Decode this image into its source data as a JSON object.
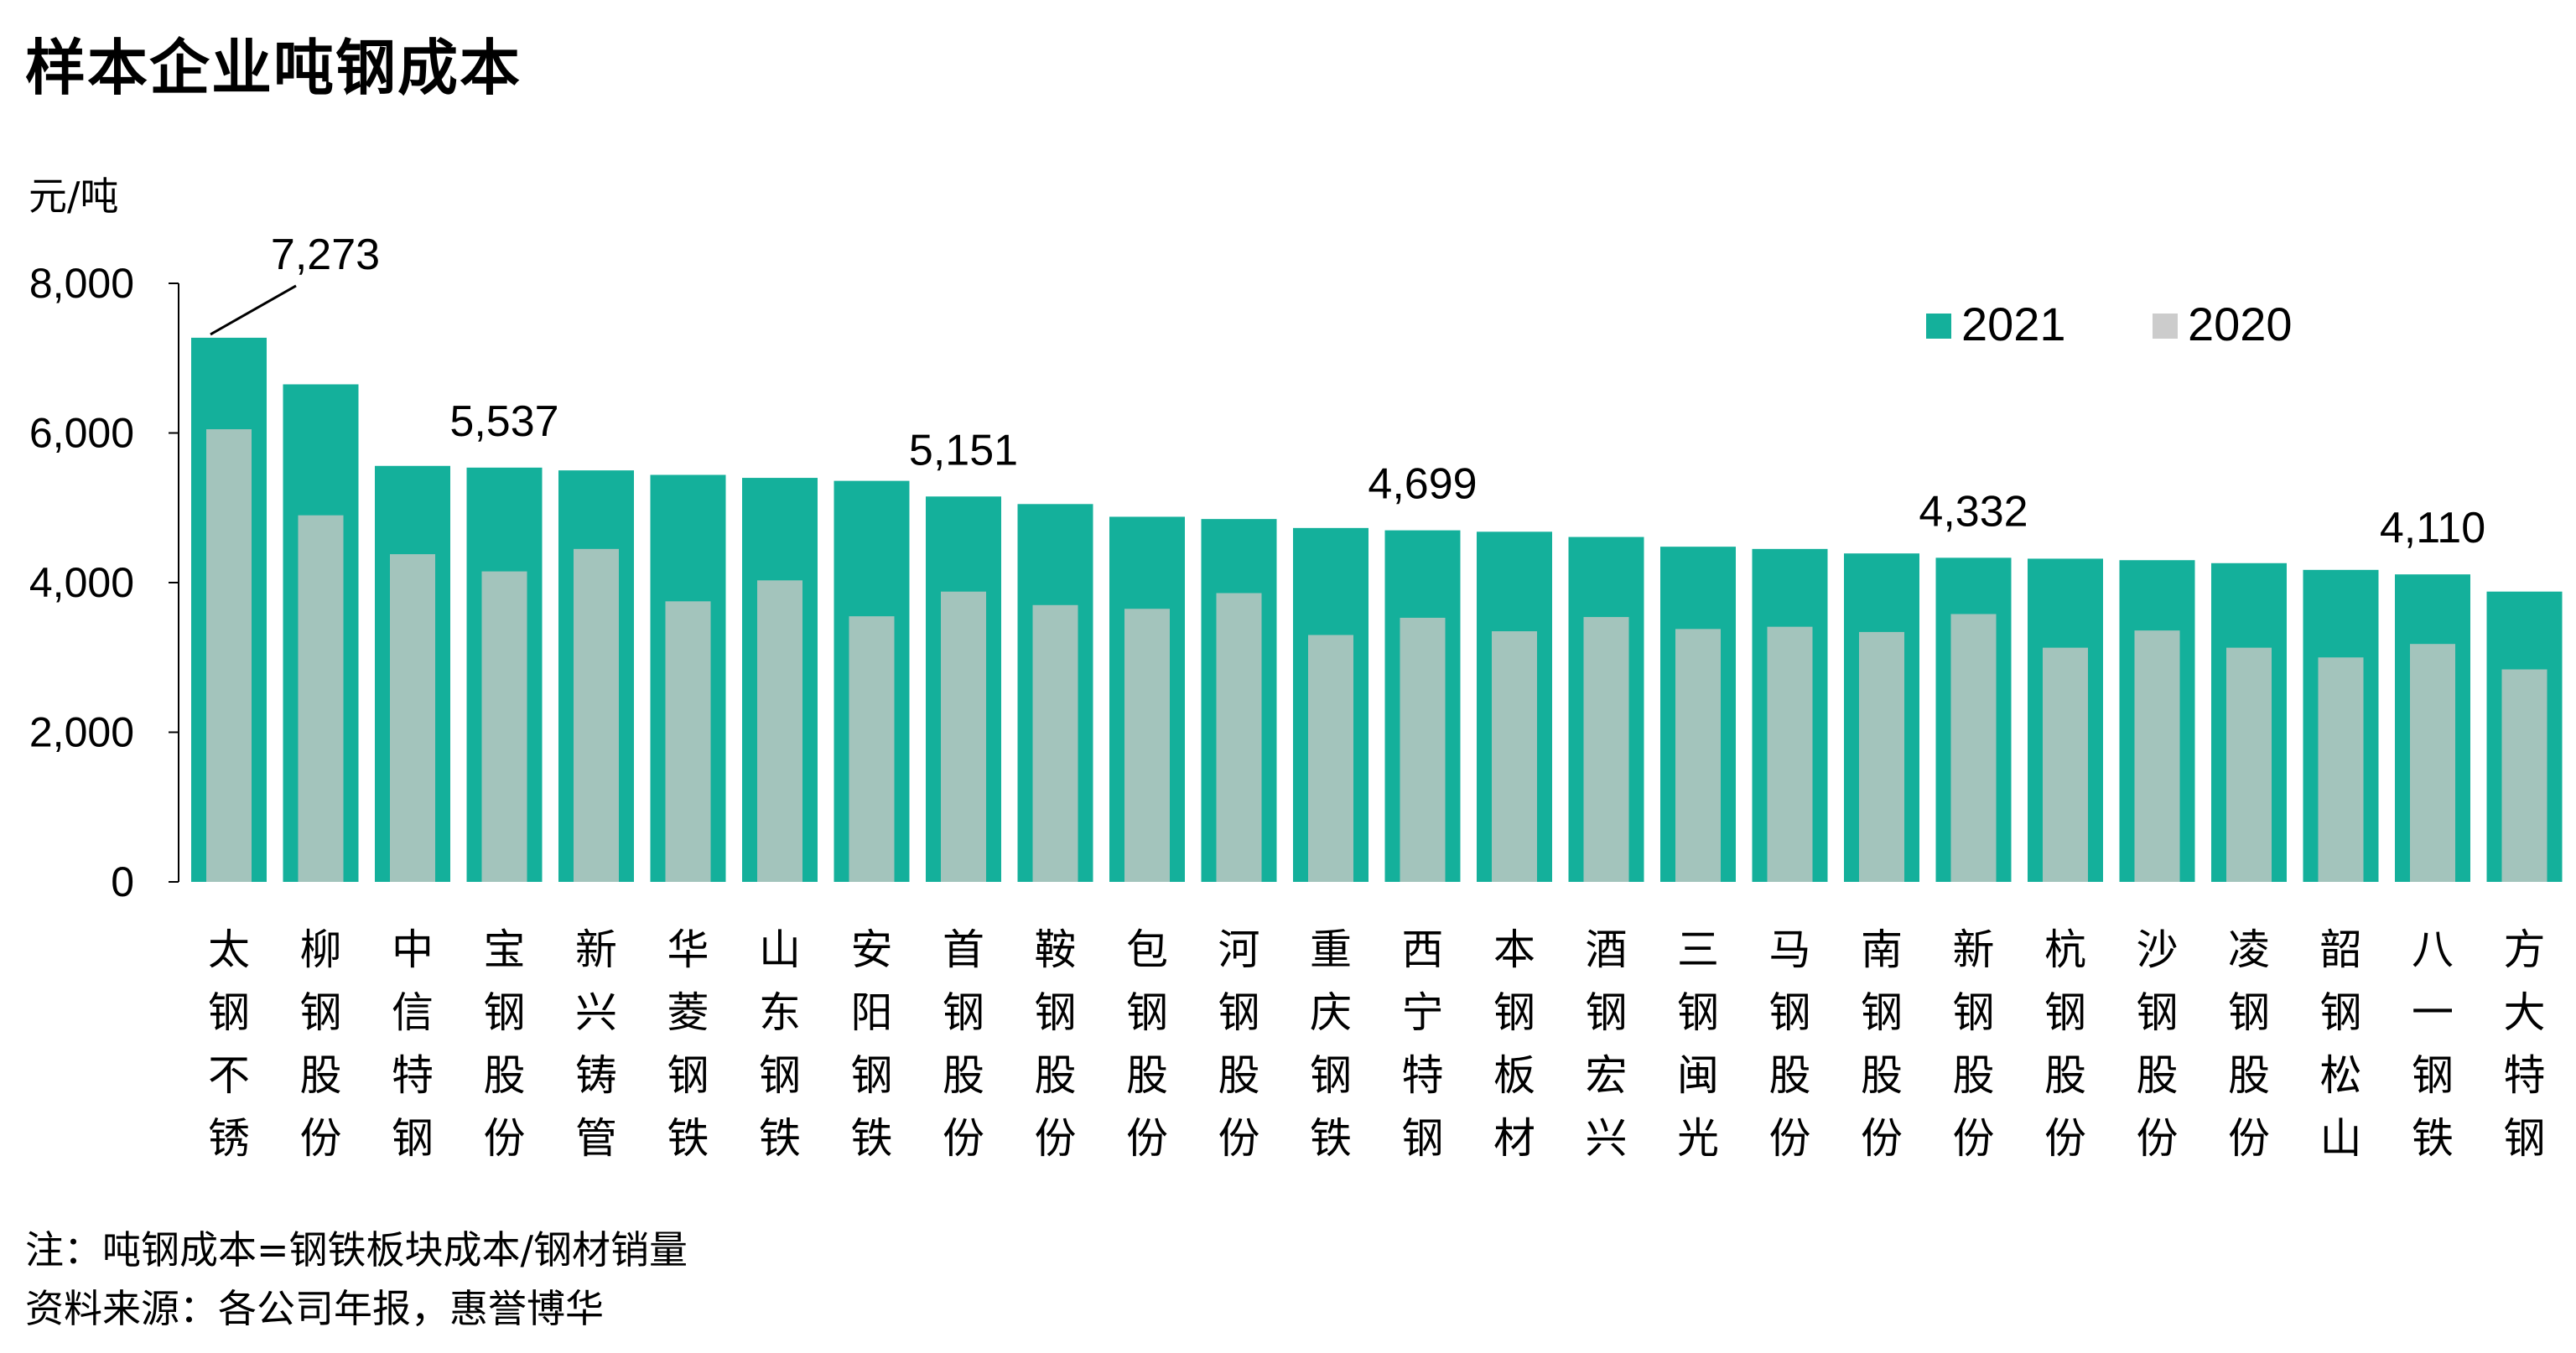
{
  "chart_data": {
    "type": "bar",
    "title": "样本企业吨钢成本",
    "ylabel": "元/吨",
    "ylim": [
      0,
      8000
    ],
    "yticks": [
      0,
      2000,
      4000,
      6000,
      8000
    ],
    "ytick_labels": [
      "0",
      "2,000",
      "4,000",
      "6,000",
      "8,000"
    ],
    "grid": false,
    "legend_position": "top-right",
    "categories": [
      "太钢不锈",
      "柳钢股份",
      "中信特钢",
      "宝钢股份",
      "新兴铸管",
      "华菱钢铁",
      "山东钢铁",
      "安阳钢铁",
      "首钢股份",
      "鞍钢股份",
      "包钢股份",
      "河钢股份",
      "重庆钢铁",
      "西宁特钢",
      "本钢板材",
      "酒钢宏兴",
      "三钢闽光",
      "马钢股份",
      "南钢股份",
      "新钢股份",
      "杭钢股份",
      "沙钢股份",
      "凌钢股份",
      "韶钢松山",
      "八一钢铁",
      "方大特钢"
    ],
    "series": [
      {
        "name": "2021",
        "color": "#14b09b",
        "values": [
          7273,
          6650,
          5560,
          5537,
          5500,
          5440,
          5400,
          5360,
          5151,
          5050,
          4880,
          4850,
          4730,
          4699,
          4680,
          4610,
          4480,
          4450,
          4390,
          4332,
          4320,
          4300,
          4260,
          4170,
          4110,
          3880
        ]
      },
      {
        "name": "2020",
        "color": "#a3c4bc",
        "values": [
          6050,
          4900,
          4380,
          4150,
          4450,
          3750,
          4030,
          3550,
          3880,
          3700,
          3650,
          3860,
          3300,
          3530,
          3350,
          3540,
          3380,
          3410,
          3340,
          3580,
          3130,
          3360,
          3130,
          3000,
          3180,
          2840
        ]
      }
    ],
    "annotations": [
      {
        "category_index": 0,
        "label": "7,273",
        "leader": true
      },
      {
        "category_index": 3,
        "label": "5,537"
      },
      {
        "category_index": 8,
        "label": "5,151"
      },
      {
        "category_index": 13,
        "label": "4,699"
      },
      {
        "category_index": 19,
        "label": "4,332"
      },
      {
        "category_index": 24,
        "label": "4,110"
      }
    ],
    "legend": {
      "items": [
        {
          "label": "2021",
          "color": "#14b09b"
        },
        {
          "label": "2020",
          "color": "#cccccc"
        }
      ]
    }
  },
  "footnotes": {
    "note": "注：吨钢成本=钢铁板块成本/钢材销量",
    "source": "资料来源：各公司年报，惠誉博华"
  }
}
